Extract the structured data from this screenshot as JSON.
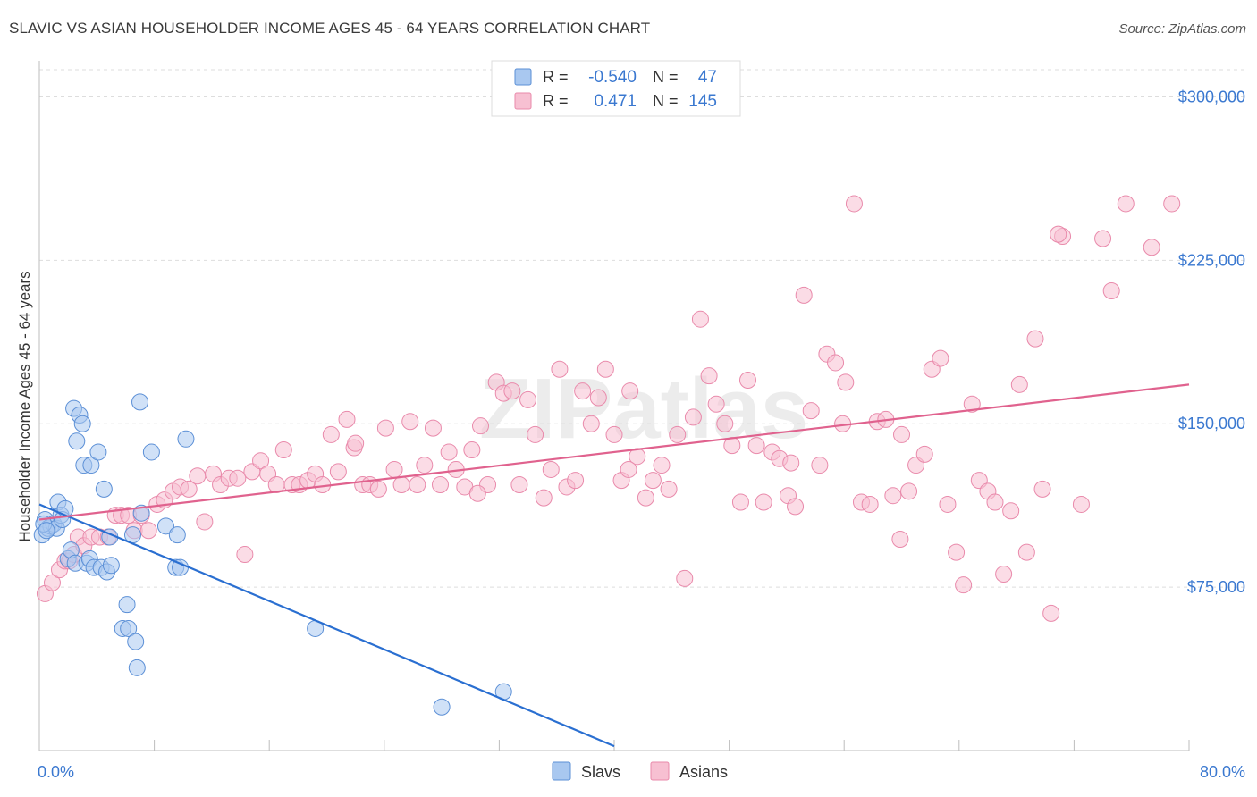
{
  "title": "SLAVIC VS ASIAN HOUSEHOLDER INCOME AGES 45 - 64 YEARS CORRELATION CHART",
  "source": "Source: ZipAtlas.com",
  "watermark": "ZIPatlas",
  "colors": {
    "slavs_fill": "#a9c8f0",
    "slavs_stroke": "#5b8fd6",
    "slavs_line": "#2a6fd1",
    "asians_fill": "#f7c0d2",
    "asians_stroke": "#e98aab",
    "asians_line": "#e0628e",
    "tick_label": "#3a78d0",
    "grid": "#dddddd"
  },
  "chart_data": {
    "type": "scatter",
    "title": "SLAVIC VS ASIAN HOUSEHOLDER INCOME AGES 45 - 64 YEARS CORRELATION CHART",
    "xlabel": "",
    "ylabel": "Householder Income Ages 45 - 64 years",
    "xlim": [
      0,
      80
    ],
    "ylim": [
      0,
      312500
    ],
    "x_tick_labels": [
      "0.0%",
      "80.0%"
    ],
    "y_ticks": [
      75000,
      150000,
      225000,
      300000
    ],
    "y_tick_labels": [
      "$75,000",
      "$150,000",
      "$225,000",
      "$300,000"
    ],
    "grid": true,
    "legend_position": "top-center",
    "stats": [
      {
        "r_label": "R =",
        "r": "-0.540",
        "n_label": "N =",
        "n": "47"
      },
      {
        "r_label": "R =",
        "r": "0.471",
        "n_label": "N =",
        "n": "145"
      }
    ],
    "series": [
      {
        "name": "Slavs",
        "color": "#5b8fd6",
        "trend": {
          "x": [
            0,
            40
          ],
          "y": [
            113000,
            2000
          ]
        },
        "points": [
          [
            0.2,
            99000
          ],
          [
            0.4,
            106000
          ],
          [
            0.6,
            102000
          ],
          [
            0.8,
            103000
          ],
          [
            1.0,
            104000
          ],
          [
            1.2,
            102000
          ],
          [
            1.3,
            114000
          ],
          [
            1.5,
            108000
          ],
          [
            1.6,
            106000
          ],
          [
            1.8,
            111000
          ],
          [
            2.0,
            88000
          ],
          [
            2.2,
            92000
          ],
          [
            2.4,
            157000
          ],
          [
            2.5,
            86000
          ],
          [
            2.6,
            142000
          ],
          [
            2.8,
            154000
          ],
          [
            3.0,
            150000
          ],
          [
            3.1,
            131000
          ],
          [
            3.3,
            86000
          ],
          [
            3.5,
            88000
          ],
          [
            3.6,
            131000
          ],
          [
            3.8,
            84000
          ],
          [
            4.1,
            137000
          ],
          [
            4.3,
            84000
          ],
          [
            4.5,
            120000
          ],
          [
            4.7,
            82000
          ],
          [
            5.0,
            85000
          ],
          [
            6.1,
            67000
          ],
          [
            5.8,
            56000
          ],
          [
            6.2,
            56000
          ],
          [
            6.7,
            50000
          ],
          [
            6.8,
            38000
          ],
          [
            6.5,
            99000
          ],
          [
            7.1,
            109000
          ],
          [
            7.0,
            160000
          ],
          [
            7.8,
            137000
          ],
          [
            8.8,
            103000
          ],
          [
            9.6,
            99000
          ],
          [
            9.5,
            84000
          ],
          [
            9.8,
            84000
          ],
          [
            10.2,
            143000
          ],
          [
            4.9,
            98000
          ],
          [
            0.3,
            104000
          ],
          [
            0.5,
            101000
          ],
          [
            19.2,
            56000
          ],
          [
            28.0,
            20000
          ],
          [
            32.3,
            27000
          ]
        ]
      },
      {
        "name": "Asians",
        "color": "#e98aab",
        "trend": {
          "x": [
            0,
            80
          ],
          "y": [
            106000,
            168000
          ]
        },
        "points": [
          [
            0.4,
            72000
          ],
          [
            0.9,
            77000
          ],
          [
            1.4,
            83000
          ],
          [
            1.8,
            87000
          ],
          [
            2.1,
            87000
          ],
          [
            2.4,
            90000
          ],
          [
            2.7,
            98000
          ],
          [
            3.1,
            94000
          ],
          [
            3.6,
            98000
          ],
          [
            4.2,
            98000
          ],
          [
            4.8,
            98000
          ],
          [
            5.3,
            108000
          ],
          [
            5.7,
            108000
          ],
          [
            6.2,
            108000
          ],
          [
            6.6,
            101000
          ],
          [
            7.1,
            108000
          ],
          [
            7.6,
            101000
          ],
          [
            8.2,
            113000
          ],
          [
            8.7,
            115000
          ],
          [
            9.3,
            119000
          ],
          [
            9.8,
            121000
          ],
          [
            10.4,
            120000
          ],
          [
            11.0,
            126000
          ],
          [
            11.5,
            105000
          ],
          [
            12.1,
            127000
          ],
          [
            12.6,
            122000
          ],
          [
            13.2,
            125000
          ],
          [
            13.8,
            125000
          ],
          [
            14.3,
            90000
          ],
          [
            14.8,
            128000
          ],
          [
            15.4,
            133000
          ],
          [
            15.9,
            127000
          ],
          [
            16.5,
            122000
          ],
          [
            17.0,
            138000
          ],
          [
            17.6,
            122000
          ],
          [
            18.1,
            122000
          ],
          [
            18.7,
            124000
          ],
          [
            19.2,
            127000
          ],
          [
            19.7,
            122000
          ],
          [
            20.3,
            145000
          ],
          [
            20.8,
            128000
          ],
          [
            21.4,
            152000
          ],
          [
            21.9,
            139000
          ],
          [
            22.5,
            122000
          ],
          [
            23.0,
            122000
          ],
          [
            23.6,
            120000
          ],
          [
            24.1,
            148000
          ],
          [
            24.7,
            129000
          ],
          [
            25.2,
            122000
          ],
          [
            25.8,
            151000
          ],
          [
            26.3,
            122000
          ],
          [
            26.8,
            131000
          ],
          [
            27.4,
            148000
          ],
          [
            27.9,
            122000
          ],
          [
            28.5,
            137000
          ],
          [
            29.0,
            129000
          ],
          [
            29.6,
            121000
          ],
          [
            30.1,
            138000
          ],
          [
            30.7,
            149000
          ],
          [
            31.2,
            122000
          ],
          [
            31.8,
            169000
          ],
          [
            32.3,
            164000
          ],
          [
            32.9,
            165000
          ],
          [
            33.4,
            122000
          ],
          [
            34.0,
            161000
          ],
          [
            34.5,
            145000
          ],
          [
            35.1,
            116000
          ],
          [
            35.6,
            129000
          ],
          [
            36.2,
            175000
          ],
          [
            36.7,
            121000
          ],
          [
            37.3,
            124000
          ],
          [
            37.8,
            165000
          ],
          [
            38.4,
            150000
          ],
          [
            38.9,
            162000
          ],
          [
            39.4,
            175000
          ],
          [
            40.0,
            145000
          ],
          [
            40.5,
            124000
          ],
          [
            41.1,
            165000
          ],
          [
            41.6,
            135000
          ],
          [
            42.2,
            116000
          ],
          [
            42.7,
            124000
          ],
          [
            43.3,
            131000
          ],
          [
            43.8,
            120000
          ],
          [
            44.4,
            145000
          ],
          [
            44.9,
            79000
          ],
          [
            45.5,
            153000
          ],
          [
            46.0,
            198000
          ],
          [
            46.6,
            172000
          ],
          [
            47.1,
            159000
          ],
          [
            47.7,
            150000
          ],
          [
            48.2,
            140000
          ],
          [
            48.8,
            114000
          ],
          [
            49.3,
            170000
          ],
          [
            49.9,
            140000
          ],
          [
            50.4,
            114000
          ],
          [
            51.0,
            137000
          ],
          [
            51.5,
            134000
          ],
          [
            52.1,
            117000
          ],
          [
            52.6,
            112000
          ],
          [
            53.2,
            209000
          ],
          [
            53.7,
            156000
          ],
          [
            54.3,
            131000
          ],
          [
            54.8,
            182000
          ],
          [
            55.4,
            178000
          ],
          [
            55.9,
            150000
          ],
          [
            56.1,
            169000
          ],
          [
            56.7,
            251000
          ],
          [
            57.2,
            114000
          ],
          [
            57.8,
            113000
          ],
          [
            58.3,
            151000
          ],
          [
            58.9,
            152000
          ],
          [
            59.4,
            117000
          ],
          [
            59.9,
            97000
          ],
          [
            60.5,
            119000
          ],
          [
            61.0,
            131000
          ],
          [
            61.6,
            136000
          ],
          [
            62.1,
            175000
          ],
          [
            62.7,
            180000
          ],
          [
            63.2,
            113000
          ],
          [
            63.8,
            91000
          ],
          [
            64.3,
            76000
          ],
          [
            64.9,
            159000
          ],
          [
            65.4,
            124000
          ],
          [
            66.0,
            119000
          ],
          [
            66.5,
            114000
          ],
          [
            67.1,
            81000
          ],
          [
            67.6,
            110000
          ],
          [
            68.2,
            168000
          ],
          [
            68.7,
            91000
          ],
          [
            69.3,
            189000
          ],
          [
            69.8,
            120000
          ],
          [
            70.4,
            63000
          ],
          [
            71.2,
            236000
          ],
          [
            74.0,
            235000
          ],
          [
            74.6,
            211000
          ],
          [
            75.6,
            251000
          ],
          [
            77.4,
            231000
          ],
          [
            78.8,
            251000
          ],
          [
            72.5,
            113000
          ],
          [
            70.9,
            237000
          ],
          [
            60.0,
            145000
          ],
          [
            52.3,
            132000
          ],
          [
            41.0,
            129000
          ],
          [
            30.5,
            118000
          ],
          [
            22.0,
            141000
          ]
        ]
      }
    ]
  },
  "legend": {
    "items": [
      {
        "label": "Slavs"
      },
      {
        "label": "Asians"
      }
    ]
  }
}
